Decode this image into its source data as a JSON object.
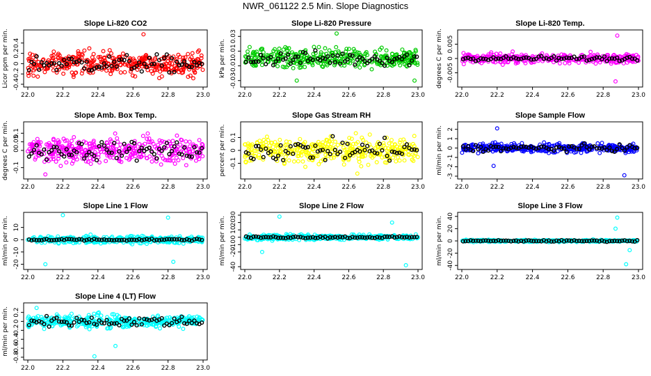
{
  "page_title": "NWR_061122  2.5 Min. Slope Diagnostics",
  "colors": {
    "red": "#ff0000",
    "green": "#00cc00",
    "magenta": "#ff00ff",
    "yellow": "#ffff00",
    "blue": "#0000ff",
    "cyan": "#00ffff",
    "overlay": "#000000"
  },
  "chart_data": [
    {
      "type": "scatter",
      "title": "Slope Li-820 CO2",
      "ylabel": "Licor ppm per min.",
      "xlim": [
        22.0,
        23.0
      ],
      "ylim": [
        -0.4,
        0.6
      ],
      "yticks": [
        -0.4,
        -0.2,
        0.0,
        0.2,
        0.4
      ],
      "xticks": [
        "22.0",
        "22.2",
        "22.4",
        "22.6",
        "22.8",
        "23.0"
      ],
      "color": "red",
      "spread": 0.16,
      "black_spread": 0.12,
      "outliers": [
        [
          22.66,
          0.57
        ]
      ]
    },
    {
      "type": "scatter",
      "title": "Slope Li-820 Pressure",
      "ylabel": "kPa per min.",
      "xlim": [
        22.0,
        23.0
      ],
      "ylim": [
        -0.035,
        0.035
      ],
      "yticks": [
        -0.03,
        -0.01,
        0.01,
        0.03
      ],
      "xticks": [
        "22.0",
        "22.2",
        "22.4",
        "22.6",
        "22.8",
        "23.0"
      ],
      "color": "green",
      "spread": 0.009,
      "black_spread": 0.007,
      "outliers": [
        [
          22.53,
          0.034
        ],
        [
          22.3,
          -0.03
        ],
        [
          22.98,
          -0.03
        ]
      ]
    },
    {
      "type": "scatter",
      "title": "Slope Li-820 Temp.",
      "ylabel": "degrees C per min.",
      "xlim": [
        22.0,
        23.0
      ],
      "ylim": [
        -0.009,
        0.009
      ],
      "yticks": [
        -0.005,
        0.0,
        0.005
      ],
      "xticks": [
        "22.0",
        "22.2",
        "22.4",
        "22.6",
        "22.8",
        "23.0"
      ],
      "color": "magenta",
      "spread": 0.0012,
      "black_spread": 0.0006,
      "outliers": [
        [
          22.88,
          0.008
        ],
        [
          22.87,
          -0.008
        ]
      ]
    },
    {
      "type": "scatter",
      "title": "Slope Amb. Box Temp.",
      "ylabel": "degrees C per min.",
      "xlim": [
        22.0,
        23.0
      ],
      "ylim": [
        -0.15,
        0.15
      ],
      "yticks": [
        -0.1,
        0.0,
        0.05,
        0.1
      ],
      "xticks": [
        "22.0",
        "22.2",
        "22.4",
        "22.6",
        "22.8",
        "23.0"
      ],
      "color": "magenta",
      "spread": 0.05,
      "black_spread": 0.04,
      "outliers": [
        [
          22.1,
          -0.14
        ]
      ]
    },
    {
      "type": "scatter",
      "title": "Slope Gas Stream RH",
      "ylabel": "percent per min.",
      "xlim": [
        22.0,
        23.0
      ],
      "ylim": [
        -0.2,
        0.2
      ],
      "yticks": [
        -0.1,
        0.0,
        0.1
      ],
      "xticks": [
        "22.0",
        "22.2",
        "22.4",
        "22.6",
        "22.8",
        "23.0"
      ],
      "color": "yellow",
      "spread": 0.07,
      "black_spread": 0.06,
      "outliers": [
        [
          22.65,
          -0.18
        ]
      ]
    },
    {
      "type": "scatter",
      "title": "Slope Sample Flow",
      "ylabel": "ml/min per min.",
      "xlim": [
        22.0,
        23.0
      ],
      "ylim": [
        -3.0,
        2.5
      ],
      "yticks": [
        -3,
        -2,
        -1,
        0,
        1,
        2
      ],
      "xticks": [
        "22.0",
        "22.2",
        "22.4",
        "22.6",
        "22.8",
        "23.0"
      ],
      "color": "blue",
      "spread": 0.35,
      "black_spread": 0.25,
      "outliers": [
        [
          22.2,
          2.1
        ],
        [
          22.92,
          -2.9
        ],
        [
          22.18,
          -1.9
        ]
      ]
    },
    {
      "type": "scatter",
      "title": "Slope Line 1 Flow",
      "ylabel": "ml/min per min.",
      "xlim": [
        22.0,
        23.0
      ],
      "ylim": [
        -22,
        20
      ],
      "yticks": [
        -20,
        -10,
        0,
        10
      ],
      "xticks": [
        "22.0",
        "22.2",
        "22.4",
        "22.6",
        "22.8",
        "23.0"
      ],
      "color": "cyan",
      "spread": 2.0,
      "black_spread": 0.6,
      "outliers": [
        [
          22.2,
          20
        ],
        [
          22.1,
          -20
        ],
        [
          22.83,
          -18
        ],
        [
          22.8,
          18
        ]
      ]
    },
    {
      "type": "scatter",
      "title": "Slope Line 2 Flow",
      "ylabel": "ml/min per min.",
      "xlim": [
        22.0,
        23.0
      ],
      "ylim": [
        -40,
        30
      ],
      "yticks": [
        -40,
        -20,
        -10,
        0,
        10,
        20,
        30
      ],
      "xticks": [
        "22.0",
        "22.2",
        "22.4",
        "22.6",
        "22.8",
        "23.0"
      ],
      "color": "cyan",
      "spread": 2.5,
      "black_spread": 1.0,
      "outliers": [
        [
          22.2,
          28
        ],
        [
          22.93,
          -38
        ],
        [
          22.85,
          20
        ],
        [
          22.1,
          -20
        ]
      ]
    },
    {
      "type": "scatter",
      "title": "Slope Line 3 Flow",
      "ylabel": "ml/min per min.",
      "xlim": [
        22.0,
        23.0
      ],
      "ylim": [
        -42,
        42
      ],
      "yticks": [
        -40,
        -20,
        0,
        20,
        40
      ],
      "xticks": [
        "22.0",
        "22.2",
        "22.4",
        "22.6",
        "22.8",
        "23.0"
      ],
      "color": "cyan",
      "spread": 1.2,
      "black_spread": 0.8,
      "outliers": [
        [
          22.88,
          38
        ],
        [
          22.93,
          -38
        ],
        [
          22.95,
          -15
        ],
        [
          22.87,
          20
        ]
      ]
    },
    {
      "type": "scatter",
      "title": "Slope Line 4 (LT) Flow",
      "ylabel": "ml/min per min.",
      "xlim": [
        22.0,
        23.0
      ],
      "ylim": [
        -0.8,
        0.35
      ],
      "yticks": [
        -0.8,
        -0.6,
        -0.4,
        -0.2,
        0.0,
        0.2
      ],
      "xticks": [
        "22.0",
        "22.2",
        "22.4",
        "22.6",
        "22.8",
        "23.0"
      ],
      "color": "cyan",
      "spread": 0.1,
      "black_spread": 0.08,
      "outliers": [
        [
          22.38,
          -0.78
        ],
        [
          22.05,
          0.3
        ],
        [
          22.5,
          -0.55
        ]
      ]
    }
  ]
}
